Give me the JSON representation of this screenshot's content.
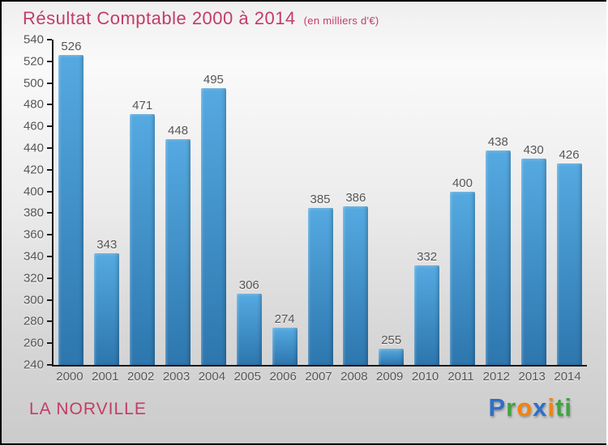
{
  "header": {
    "title": "Résultat Comptable 2000 à 2014",
    "subtitle": "(en milliers d'€)",
    "accent_color": "#c43c66"
  },
  "chart_data": {
    "type": "bar",
    "title": "Résultat Comptable 2000 à 2014",
    "subtitle": "(en milliers d'€)",
    "categories": [
      "2000",
      "2001",
      "2002",
      "2003",
      "2004",
      "2005",
      "2006",
      "2007",
      "2008",
      "2009",
      "2010",
      "2011",
      "2012",
      "2013",
      "2014"
    ],
    "values": [
      526,
      343,
      471,
      448,
      495,
      306,
      274,
      385,
      386,
      255,
      332,
      400,
      438,
      430,
      426
    ],
    "ylim": [
      240,
      540
    ],
    "ytick_step": 20,
    "grid": false,
    "value_labels": true,
    "legend": "none",
    "bar_color_top": "#55aae1",
    "bar_color_bottom": "#2d76ae",
    "axis_color": "#1a1a1a",
    "label_color": "#555555"
  },
  "footer": {
    "municipality": "LA NORVILLE",
    "logo": {
      "text": "Proxiti",
      "letters": [
        {
          "char": "P",
          "color": "#2e6fc9"
        },
        {
          "char": "r",
          "color": "#3fa440"
        },
        {
          "char": "o",
          "color": "#f5820d"
        },
        {
          "char": "x",
          "color": "#2e6fc9"
        },
        {
          "char": "i",
          "color": "#f5820d"
        },
        {
          "char": "t",
          "color": "#3fa440"
        },
        {
          "char": "i",
          "color": "#3fa440"
        }
      ]
    }
  }
}
